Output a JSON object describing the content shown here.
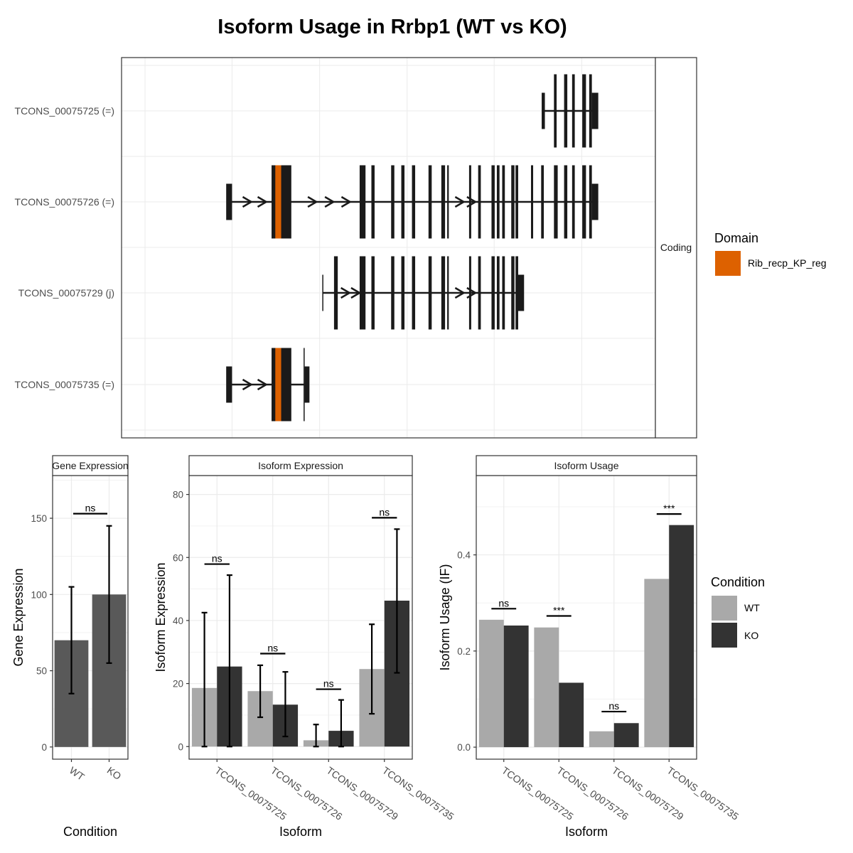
{
  "title": "Isoform Usage in Rrbp1 (WT vs KO)",
  "colors": {
    "exon": "#1a1a1a",
    "domain": "#dd6100",
    "wt": "#a9a9a9",
    "ko": "#333333",
    "gene_bar": "#595959",
    "grid": "#ebebeb",
    "axis_text": "#4d4d4d"
  },
  "structure_panel": {
    "strip_label": "Coding",
    "isoforms": [
      {
        "label": "TCONS_00075725 (=)",
        "exons": [
          [
            0.787,
            0.793
          ],
          [
            0.81,
            0.815
          ],
          [
            0.829,
            0.835
          ],
          [
            0.844,
            0.849
          ],
          [
            0.863,
            0.87
          ],
          [
            0.876,
            0.881
          ],
          [
            0.881,
            0.893
          ]
        ],
        "intron_range": [
          0.79,
          0.884
        ],
        "arrows": [],
        "domains": []
      },
      {
        "label": "TCONS_00075726 (=)",
        "exons": [
          [
            0.196,
            0.207
          ],
          [
            0.281,
            0.318
          ],
          [
            0.446,
            0.457
          ],
          [
            0.468,
            0.474
          ],
          [
            0.505,
            0.511
          ],
          [
            0.524,
            0.53
          ],
          [
            0.544,
            0.55
          ],
          [
            0.575,
            0.581
          ],
          [
            0.599,
            0.606
          ],
          [
            0.61,
            0.613
          ],
          [
            0.651,
            0.655
          ],
          [
            0.668,
            0.673
          ],
          [
            0.693,
            0.699
          ],
          [
            0.703,
            0.708
          ],
          [
            0.713,
            0.718
          ],
          [
            0.73,
            0.736
          ],
          [
            0.738,
            0.743
          ],
          [
            0.767,
            0.771
          ],
          [
            0.786,
            0.791
          ],
          [
            0.81,
            0.817
          ],
          [
            0.829,
            0.835
          ],
          [
            0.844,
            0.849
          ],
          [
            0.863,
            0.87
          ],
          [
            0.876,
            0.881
          ],
          [
            0.881,
            0.893
          ]
        ],
        "intron_range": [
          0.2,
          0.885
        ],
        "arrows": [
          0.235,
          0.263,
          0.29,
          0.357,
          0.389,
          0.42,
          0.633,
          0.655
        ],
        "domains": [
          {
            "name": "Rib_recp_KP_reg",
            "range": [
              0.288,
              0.299
            ]
          }
        ]
      },
      {
        "label": "TCONS_00075729 (j)",
        "exons": [
          [
            0.376,
            0.378
          ],
          [
            0.398,
            0.405
          ],
          [
            0.446,
            0.457
          ],
          [
            0.468,
            0.474
          ],
          [
            0.505,
            0.511
          ],
          [
            0.524,
            0.53
          ],
          [
            0.544,
            0.55
          ],
          [
            0.575,
            0.581
          ],
          [
            0.599,
            0.606
          ],
          [
            0.61,
            0.613
          ],
          [
            0.651,
            0.655
          ],
          [
            0.668,
            0.673
          ],
          [
            0.693,
            0.699
          ],
          [
            0.703,
            0.708
          ],
          [
            0.713,
            0.718
          ],
          [
            0.73,
            0.736
          ],
          [
            0.738,
            0.743
          ],
          [
            0.743,
            0.754
          ]
        ],
        "intron_range": [
          0.377,
          0.745
        ],
        "arrows": [
          0.419,
          0.438,
          0.633,
          0.655
        ],
        "domains": []
      },
      {
        "label": "TCONS_00075735 (=)",
        "exons": [
          [
            0.196,
            0.207
          ],
          [
            0.281,
            0.318
          ],
          [
            0.341,
            0.343
          ],
          [
            0.343,
            0.352
          ]
        ],
        "intron_range": [
          0.2,
          0.345
        ],
        "arrows": [
          0.235,
          0.263,
          0.29
        ],
        "domains": [
          {
            "name": "Rib_recp_KP_reg",
            "range": [
              0.288,
              0.299
            ]
          }
        ]
      }
    ]
  },
  "domain_legend": {
    "title": "Domain",
    "items": [
      {
        "label": "Rib_recp_KP_reg"
      }
    ]
  },
  "condition_legend": {
    "title": "Condition",
    "items": [
      {
        "label": "WT"
      },
      {
        "label": "KO"
      }
    ]
  },
  "chart_data": [
    {
      "type": "bar",
      "panel_title": "Gene Expression",
      "xlabel": "Condition",
      "ylabel": "Gene Expression",
      "categories": [
        "WT",
        "KO"
      ],
      "values": [
        70,
        100
      ],
      "errors": [
        [
          35,
          105
        ],
        [
          55,
          145
        ]
      ],
      "ylim": [
        -8,
        178
      ],
      "yticks": [
        0,
        50,
        100,
        150
      ],
      "significance": [
        {
          "label": "ns",
          "y": 153
        }
      ],
      "grid": true
    },
    {
      "type": "bar",
      "panel_title": "Isoform Expression",
      "xlabel": "Isoform",
      "ylabel": "Isoform Expression",
      "categories": [
        "TCONS_00075725",
        "TCONS_00075726",
        "TCONS_00075729",
        "TCONS_00075735"
      ],
      "series": [
        {
          "name": "WT",
          "values": [
            18.6,
            17.6,
            2.0,
            24.6
          ],
          "errors": [
            [
              0,
              42.5
            ],
            [
              9.3,
              25.8
            ],
            [
              0,
              7.0
            ],
            [
              10.4,
              38.8
            ]
          ]
        },
        {
          "name": "KO",
          "values": [
            25.4,
            13.3,
            5.0,
            46.3
          ],
          "errors": [
            [
              0,
              54.4
            ],
            [
              3.2,
              23.7
            ],
            [
              0,
              14.8
            ],
            [
              23.4,
              69.0
            ]
          ]
        }
      ],
      "ylim": [
        -4,
        86
      ],
      "yticks": [
        0,
        20,
        40,
        60,
        80
      ],
      "significance": [
        {
          "label": "ns",
          "y": 57.9
        },
        {
          "label": "ns",
          "y": 29.5
        },
        {
          "label": "ns",
          "y": 18.2
        },
        {
          "label": "ns",
          "y": 72.6
        }
      ],
      "grid": true
    },
    {
      "type": "bar",
      "panel_title": "Isoform Usage",
      "xlabel": "Isoform",
      "ylabel": "Isoform Usage (IF)",
      "categories": [
        "TCONS_00075725",
        "TCONS_00075726",
        "TCONS_00075729",
        "TCONS_00075735"
      ],
      "series": [
        {
          "name": "WT",
          "values": [
            0.265,
            0.249,
            0.033,
            0.35
          ]
        },
        {
          "name": "KO",
          "values": [
            0.253,
            0.134,
            0.05,
            0.462
          ]
        }
      ],
      "ylim": [
        -0.025,
        0.565
      ],
      "yticks": [
        0.0,
        0.2,
        0.4
      ],
      "ytick_labels": [
        "0.0",
        "0.2",
        "0.4"
      ],
      "significance": [
        {
          "label": "ns",
          "y": 0.288
        },
        {
          "label": "***",
          "y": 0.273
        },
        {
          "label": "ns",
          "y": 0.074
        },
        {
          "label": "***",
          "y": 0.485
        }
      ],
      "grid": true
    }
  ]
}
